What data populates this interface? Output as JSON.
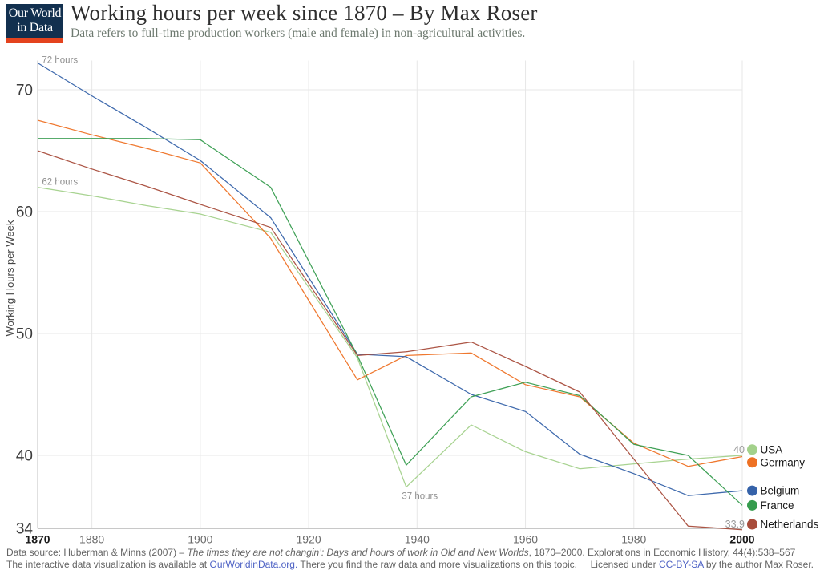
{
  "header": {
    "logo_line1": "Our World",
    "logo_line2": "in Data",
    "title": "Working hours per week since 1870 – By Max Roser",
    "subtitle": "Data refers to full-time production workers (male and female) in non-agricultural activities."
  },
  "brand": {
    "logo_bg": "#12304f",
    "logo_bar": "#e4431e",
    "link_color": "#4f63c5"
  },
  "chart_data": {
    "type": "line",
    "title": "Working hours per week since 1870",
    "xlabel": "",
    "ylabel": "Working Hours per Week",
    "xlim": [
      1870,
      2000
    ],
    "ylim": [
      34,
      72.4
    ],
    "grid": true,
    "legend_position": "right",
    "x_ticks": [
      1870,
      1880,
      1900,
      1920,
      1940,
      1960,
      1980,
      2000
    ],
    "y_ticks": [
      70,
      60,
      50,
      40,
      34
    ],
    "years": [
      1870,
      1880,
      1890,
      1900,
      1913,
      1929,
      1938,
      1950,
      1960,
      1970,
      1980,
      1990,
      2000
    ],
    "series": [
      {
        "name": "USA",
        "color": "#a3d18b",
        "values": [
          62,
          61.3,
          60.5,
          59.8,
          58.3,
          48,
          37.4,
          42.5,
          40.3,
          38.9,
          39.3,
          39.7,
          40
        ],
        "end_label": "40"
      },
      {
        "name": "Germany",
        "color": "#ee7124",
        "values": [
          67.5,
          66.3,
          65.2,
          64,
          57.8,
          46.2,
          48.2,
          48.4,
          45.8,
          44.8,
          41,
          39.1,
          39.9
        ]
      },
      {
        "name": "Belgium",
        "color": "#3562a9",
        "values": [
          72.2,
          69.5,
          66.9,
          64.2,
          59.5,
          48.3,
          48.1,
          45,
          43.6,
          40.1,
          38.5,
          36.7,
          37.1
        ]
      },
      {
        "name": "France",
        "color": "#369c4e",
        "values": [
          66,
          66,
          66,
          65.9,
          62,
          48.2,
          39.2,
          44.8,
          46,
          44.9,
          40.9,
          40,
          35.9
        ]
      },
      {
        "name": "Netherlands",
        "color": "#a84c3b",
        "values": [
          65,
          63.5,
          62.1,
          60.6,
          58.7,
          48.2,
          48.5,
          49.3,
          47.3,
          45.2,
          39.7,
          34.2,
          33.9
        ],
        "end_label": "33.9"
      }
    ],
    "annotations": [
      {
        "text": "72 hours",
        "year": 1870.8,
        "value": 72.2,
        "align": "start"
      },
      {
        "text": "62 hours",
        "year": 1870.8,
        "value": 62.2,
        "align": "start"
      },
      {
        "text": "37 hours",
        "year": 1937.2,
        "value": 36.4,
        "align": "start"
      }
    ]
  },
  "footer": {
    "line1_prefix": "Data source: Huberman & Minns (2007) – ",
    "line1_italic": "The times they are not changin’: Days and hours of work in Old and New Worlds",
    "line1_suffix": ", 1870–2000. Explorations in Economic History, 44(4):538–567",
    "line2_prefix": "The interactive data visualization is available at ",
    "line2_link": "OurWorldinData.org.",
    "line2_suffix": " There you find the raw data and more visualizations on this topic.",
    "license_prefix": "Licensed under ",
    "license_link": "CC-BY-SA",
    "license_suffix": " by the author Max Roser."
  }
}
